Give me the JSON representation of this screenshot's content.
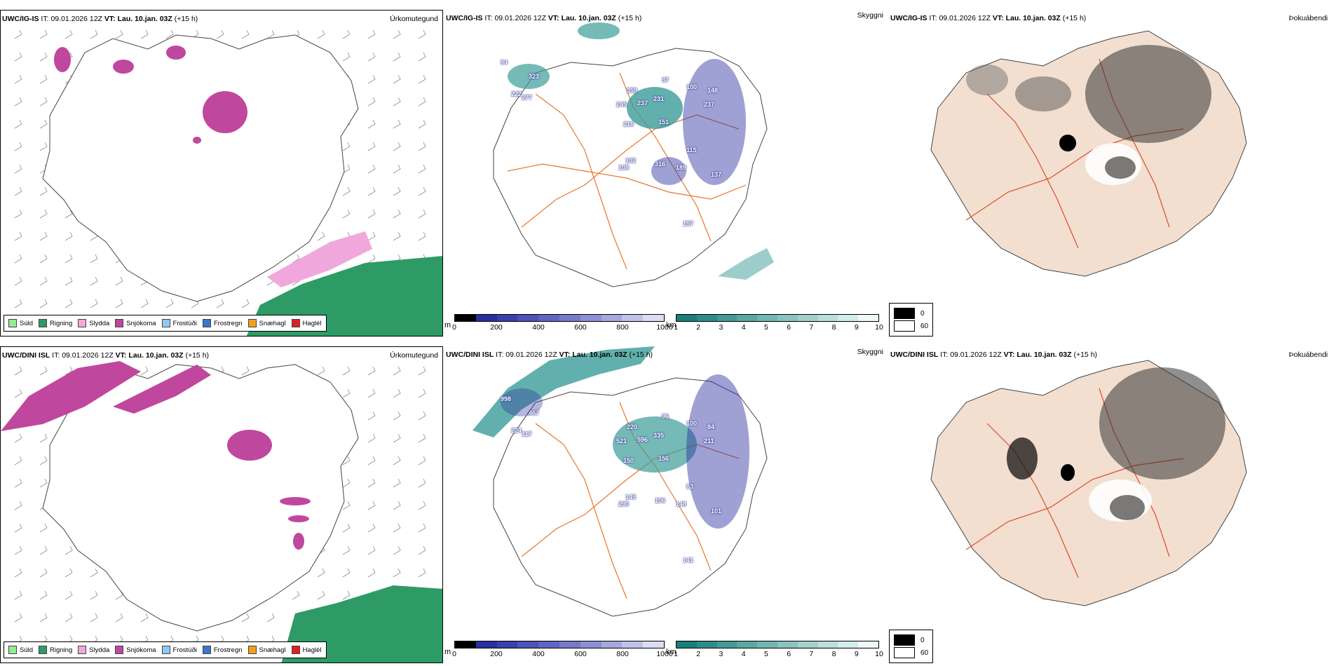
{
  "rows": [
    {
      "model": "UWC/IG-IS",
      "it_label": "IT:",
      "it_value": "09.01.2026 12Z",
      "vt_label": "VT:",
      "vt_value": "Lau. 10.jan. 03Z",
      "lead": "(+15 h)",
      "vis_labels": [
        "94",
        "323",
        "222",
        "277",
        "359",
        "245",
        "237",
        "231",
        "216",
        "151",
        "102",
        "108",
        "316",
        "189",
        "100",
        "148",
        "237",
        "115",
        "37",
        "137",
        "157"
      ]
    },
    {
      "model": "UWC/DINI ISL",
      "it_label": "IT:",
      "it_value": "09.01.2026 12Z",
      "vt_label": "VT:",
      "vt_value": "Lau. 10.jan. 03Z",
      "lead": "(+15 h)",
      "vis_labels": [
        "998",
        "467",
        "224",
        "117",
        "220",
        "521",
        "596",
        "335",
        "150",
        "156",
        "145",
        "290",
        "106",
        "148",
        "100",
        "84",
        "211",
        "83",
        "96",
        "101",
        "141"
      ]
    }
  ],
  "panel_titles": {
    "precip_type": "Úrkomutegund",
    "visibility": "Skyggni",
    "fog": "Þokuábendi"
  },
  "precip_legend": [
    {
      "label": "Súld",
      "color": "#90ee90"
    },
    {
      "label": "Rigning",
      "color": "#2e9b66"
    },
    {
      "label": "Slydda",
      "color": "#f0a8dc"
    },
    {
      "label": "Snjókoma",
      "color": "#c0479e"
    },
    {
      "label": "Frostúði",
      "color": "#90c8f0"
    },
    {
      "label": "Frostregn",
      "color": "#3a78c8"
    },
    {
      "label": "Snæhagl",
      "color": "#f0a020"
    },
    {
      "label": "Haglél",
      "color": "#e02020"
    }
  ],
  "cbar_m": {
    "unit": "m",
    "ticks": [
      "0",
      "200",
      "400",
      "600",
      "800",
      "1000"
    ]
  },
  "cbar_km": {
    "unit": "km",
    "ticks": [
      "1",
      "2",
      "3",
      "4",
      "5",
      "6",
      "7",
      "8",
      "9",
      "10"
    ]
  },
  "fog_legend": {
    "low": "0",
    "high": "60"
  },
  "colors": {
    "snow": "#c0479e",
    "sleet": "#f0a8dc",
    "rain": "#2e9b66",
    "teal": "#3a9c98",
    "blue": "#2a2f9f",
    "land": "#f2dfd0",
    "road": "#e8762c"
  }
}
